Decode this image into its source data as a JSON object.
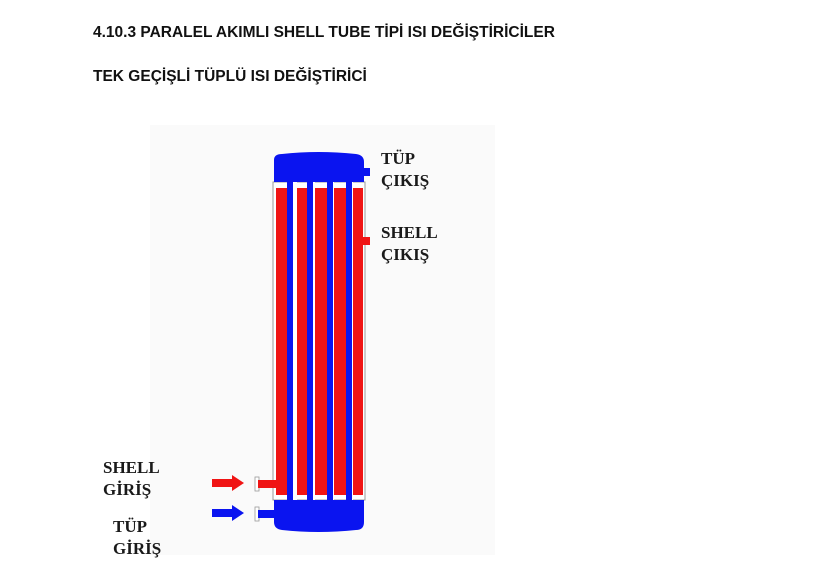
{
  "section_title": "4.10.3 PARALEL AKIMLI SHELL TUBE TİPİ ISI DEĞİŞTİRİCİLER",
  "subtitle": "TEK GEÇİŞLİ TÜPLÜ ISI DEĞİŞTİRİCİ",
  "diagram": {
    "labels": {
      "tube_outlet": [
        "TÜP",
        "ÇIKIŞ"
      ],
      "shell_outlet": [
        "SHELL",
        "ÇIKIŞ"
      ],
      "shell_inlet": [
        "SHELL",
        "GİRİŞ"
      ],
      "tube_inlet": [
        "TÜP",
        "GİRİŞ"
      ]
    },
    "colors": {
      "tube_fluid": "#0a14f0",
      "shell_fluid": "#f01414"
    }
  }
}
